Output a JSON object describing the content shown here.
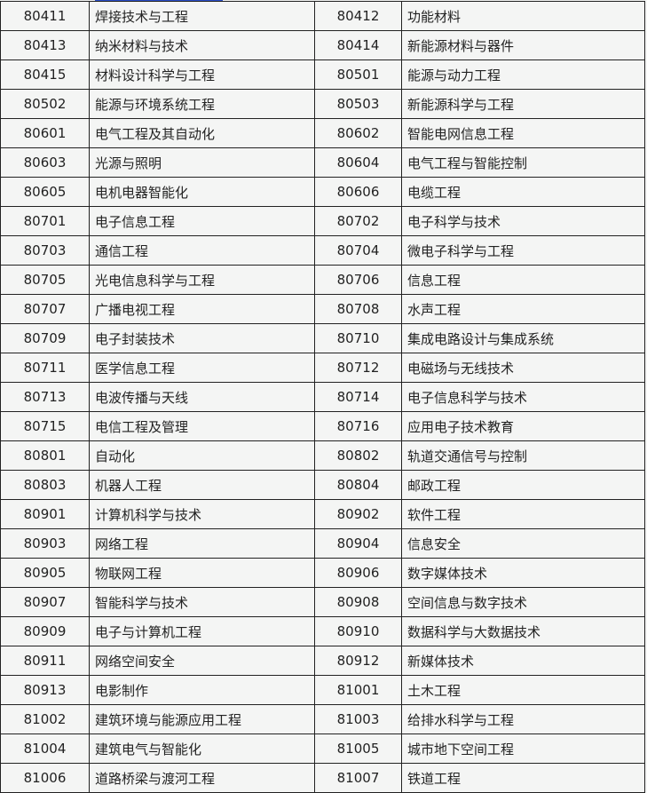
{
  "rows": [
    [
      "80411",
      "焊接技术与工程",
      "80412",
      "功能材料"
    ],
    [
      "80413",
      "纳米材料与技术",
      "80414",
      "新能源材料与器件"
    ],
    [
      "80415",
      "材料设计科学与工程",
      "80501",
      "能源与动力工程"
    ],
    [
      "80502",
      "能源与环境系统工程",
      "80503",
      "新能源科学与工程"
    ],
    [
      "80601",
      "电气工程及其自动化",
      "80602",
      "智能电网信息工程"
    ],
    [
      "80603",
      "光源与照明",
      "80604",
      "电气工程与智能控制"
    ],
    [
      "80605",
      "电机电器智能化",
      "80606",
      "电缆工程"
    ],
    [
      "80701",
      "电子信息工程",
      "80702",
      "电子科学与技术"
    ],
    [
      "80703",
      "通信工程",
      "80704",
      "微电子科学与工程"
    ],
    [
      "80705",
      "光电信息科学与工程",
      "80706",
      "信息工程"
    ],
    [
      "80707",
      "广播电视工程",
      "80708",
      "水声工程"
    ],
    [
      "80709",
      "电子封装技术",
      "80710",
      "集成电路设计与集成系统"
    ],
    [
      "80711",
      "医学信息工程",
      "80712",
      "电磁场与无线技术"
    ],
    [
      "80713",
      "电波传播与天线",
      "80714",
      "电子信息科学与技术"
    ],
    [
      "80715",
      "电信工程及管理",
      "80716",
      "应用电子技术教育"
    ],
    [
      "80801",
      "自动化",
      "80802",
      "轨道交通信号与控制"
    ],
    [
      "80803",
      "机器人工程",
      "80804",
      "邮政工程"
    ],
    [
      "80901",
      "计算机科学与技术",
      "80902",
      "软件工程"
    ],
    [
      "80903",
      "网络工程",
      "80904",
      "信息安全"
    ],
    [
      "80905",
      "物联网工程",
      "80906",
      "数字媒体技术"
    ],
    [
      "80907",
      "智能科学与技术",
      "80908",
      "空间信息与数字技术"
    ],
    [
      "80909",
      "电子与计算机工程",
      "80910",
      "数据科学与大数据技术"
    ],
    [
      "80911",
      "网络空间安全",
      "80912",
      "新媒体技术"
    ],
    [
      "80913",
      "电影制作",
      "81001",
      "土木工程"
    ],
    [
      "81002",
      "建筑环境与能源应用工程",
      "81003",
      "给排水科学与工程"
    ],
    [
      "81004",
      "建筑电气与智能化",
      "81005",
      "城市地下空间工程"
    ],
    [
      "81006",
      "道路桥梁与渡河工程",
      "81007",
      "铁道工程"
    ]
  ]
}
